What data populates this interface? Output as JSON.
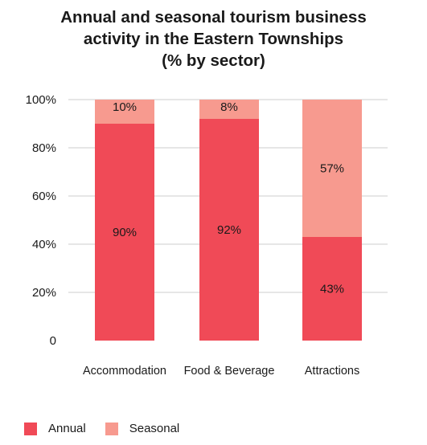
{
  "chart_data": {
    "type": "bar",
    "stacked": true,
    "title_lines": [
      "Annual and seasonal tourism business",
      "activity in the Eastern Townships",
      "(% by sector)"
    ],
    "categories": [
      "Accommodation",
      "Food & Beverage",
      "Attractions"
    ],
    "series": [
      {
        "name": "Annual",
        "color": "#f04a57",
        "values": [
          90,
          92,
          43
        ],
        "labels": [
          "90%",
          "92%",
          "43%"
        ]
      },
      {
        "name": "Seasonal",
        "color": "#f79a8f",
        "values": [
          10,
          8,
          57
        ],
        "labels": [
          "10%",
          "8%",
          "57%"
        ]
      }
    ],
    "ylim": [
      0,
      100
    ],
    "yticks": [
      0,
      20,
      40,
      60,
      80,
      100
    ],
    "ytick_labels": [
      "0",
      "20%",
      "40%",
      "60%",
      "80%",
      "100%"
    ],
    "grid": true,
    "legend_position": "bottom-left"
  }
}
